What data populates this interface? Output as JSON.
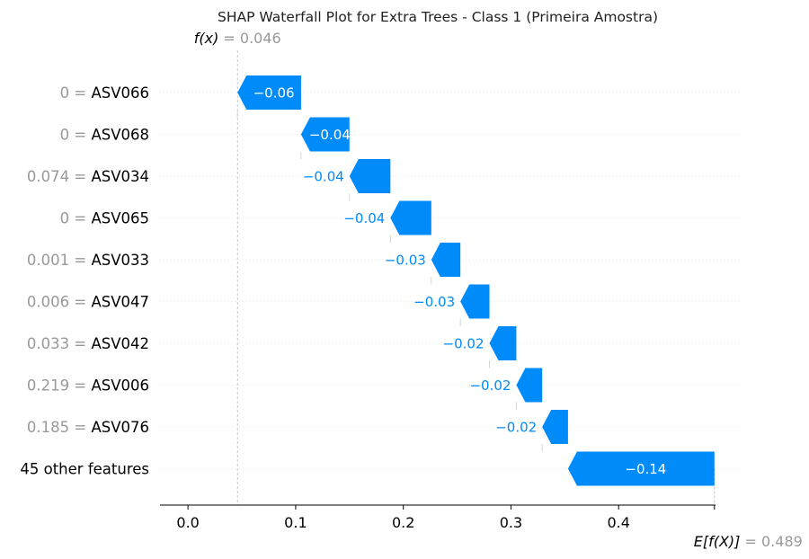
{
  "colors": {
    "negative": "#008bfb",
    "value_text": "#999999",
    "label_text": "#000000",
    "grid": "#e6e6e6"
  },
  "chart_data": {
    "type": "waterfall",
    "title": "SHAP Waterfall Plot for Extra Trees - Class 1 (Primeira Amostra)",
    "fx_label": "f(x)",
    "fx_value": "= 0.046",
    "fx": 0.046,
    "base_label": "E[f(X)]",
    "base_value_text": "= 0.489",
    "base_value": 0.489,
    "xlim": [
      -0.026,
      0.49
    ],
    "xticks": [
      {
        "value": 0.0,
        "label": "0.0"
      },
      {
        "value": 0.1,
        "label": "0.1"
      },
      {
        "value": 0.2,
        "label": "0.2"
      },
      {
        "value": 0.3,
        "label": "0.3"
      },
      {
        "value": 0.4,
        "label": "0.4"
      }
    ],
    "features": [
      {
        "value": "0",
        "name": "ASV066",
        "shap": -0.059,
        "label": "−0.06",
        "start": 0.105
      },
      {
        "value": "0",
        "name": "ASV068",
        "shap": -0.045,
        "label": "−0.04",
        "start": 0.15
      },
      {
        "value": "0.074",
        "name": "ASV034",
        "shap": -0.038,
        "label": "−0.04",
        "start": 0.188
      },
      {
        "value": "0",
        "name": "ASV065",
        "shap": -0.038,
        "label": "−0.04",
        "start": 0.226
      },
      {
        "value": "0.001",
        "name": "ASV033",
        "shap": -0.027,
        "label": "−0.03",
        "start": 0.253
      },
      {
        "value": "0.006",
        "name": "ASV047",
        "shap": -0.027,
        "label": "−0.03",
        "start": 0.28
      },
      {
        "value": "0.033",
        "name": "ASV042",
        "shap": -0.025,
        "label": "−0.02",
        "start": 0.305
      },
      {
        "value": "0.219",
        "name": "ASV006",
        "shap": -0.024,
        "label": "−0.02",
        "start": 0.329
      },
      {
        "value": "0.185",
        "name": "ASV076",
        "shap": -0.024,
        "label": "−0.02",
        "start": 0.353
      },
      {
        "value": "",
        "name": "45 other features",
        "shap": -0.136,
        "label": "−0.14",
        "start": 0.489
      }
    ]
  }
}
